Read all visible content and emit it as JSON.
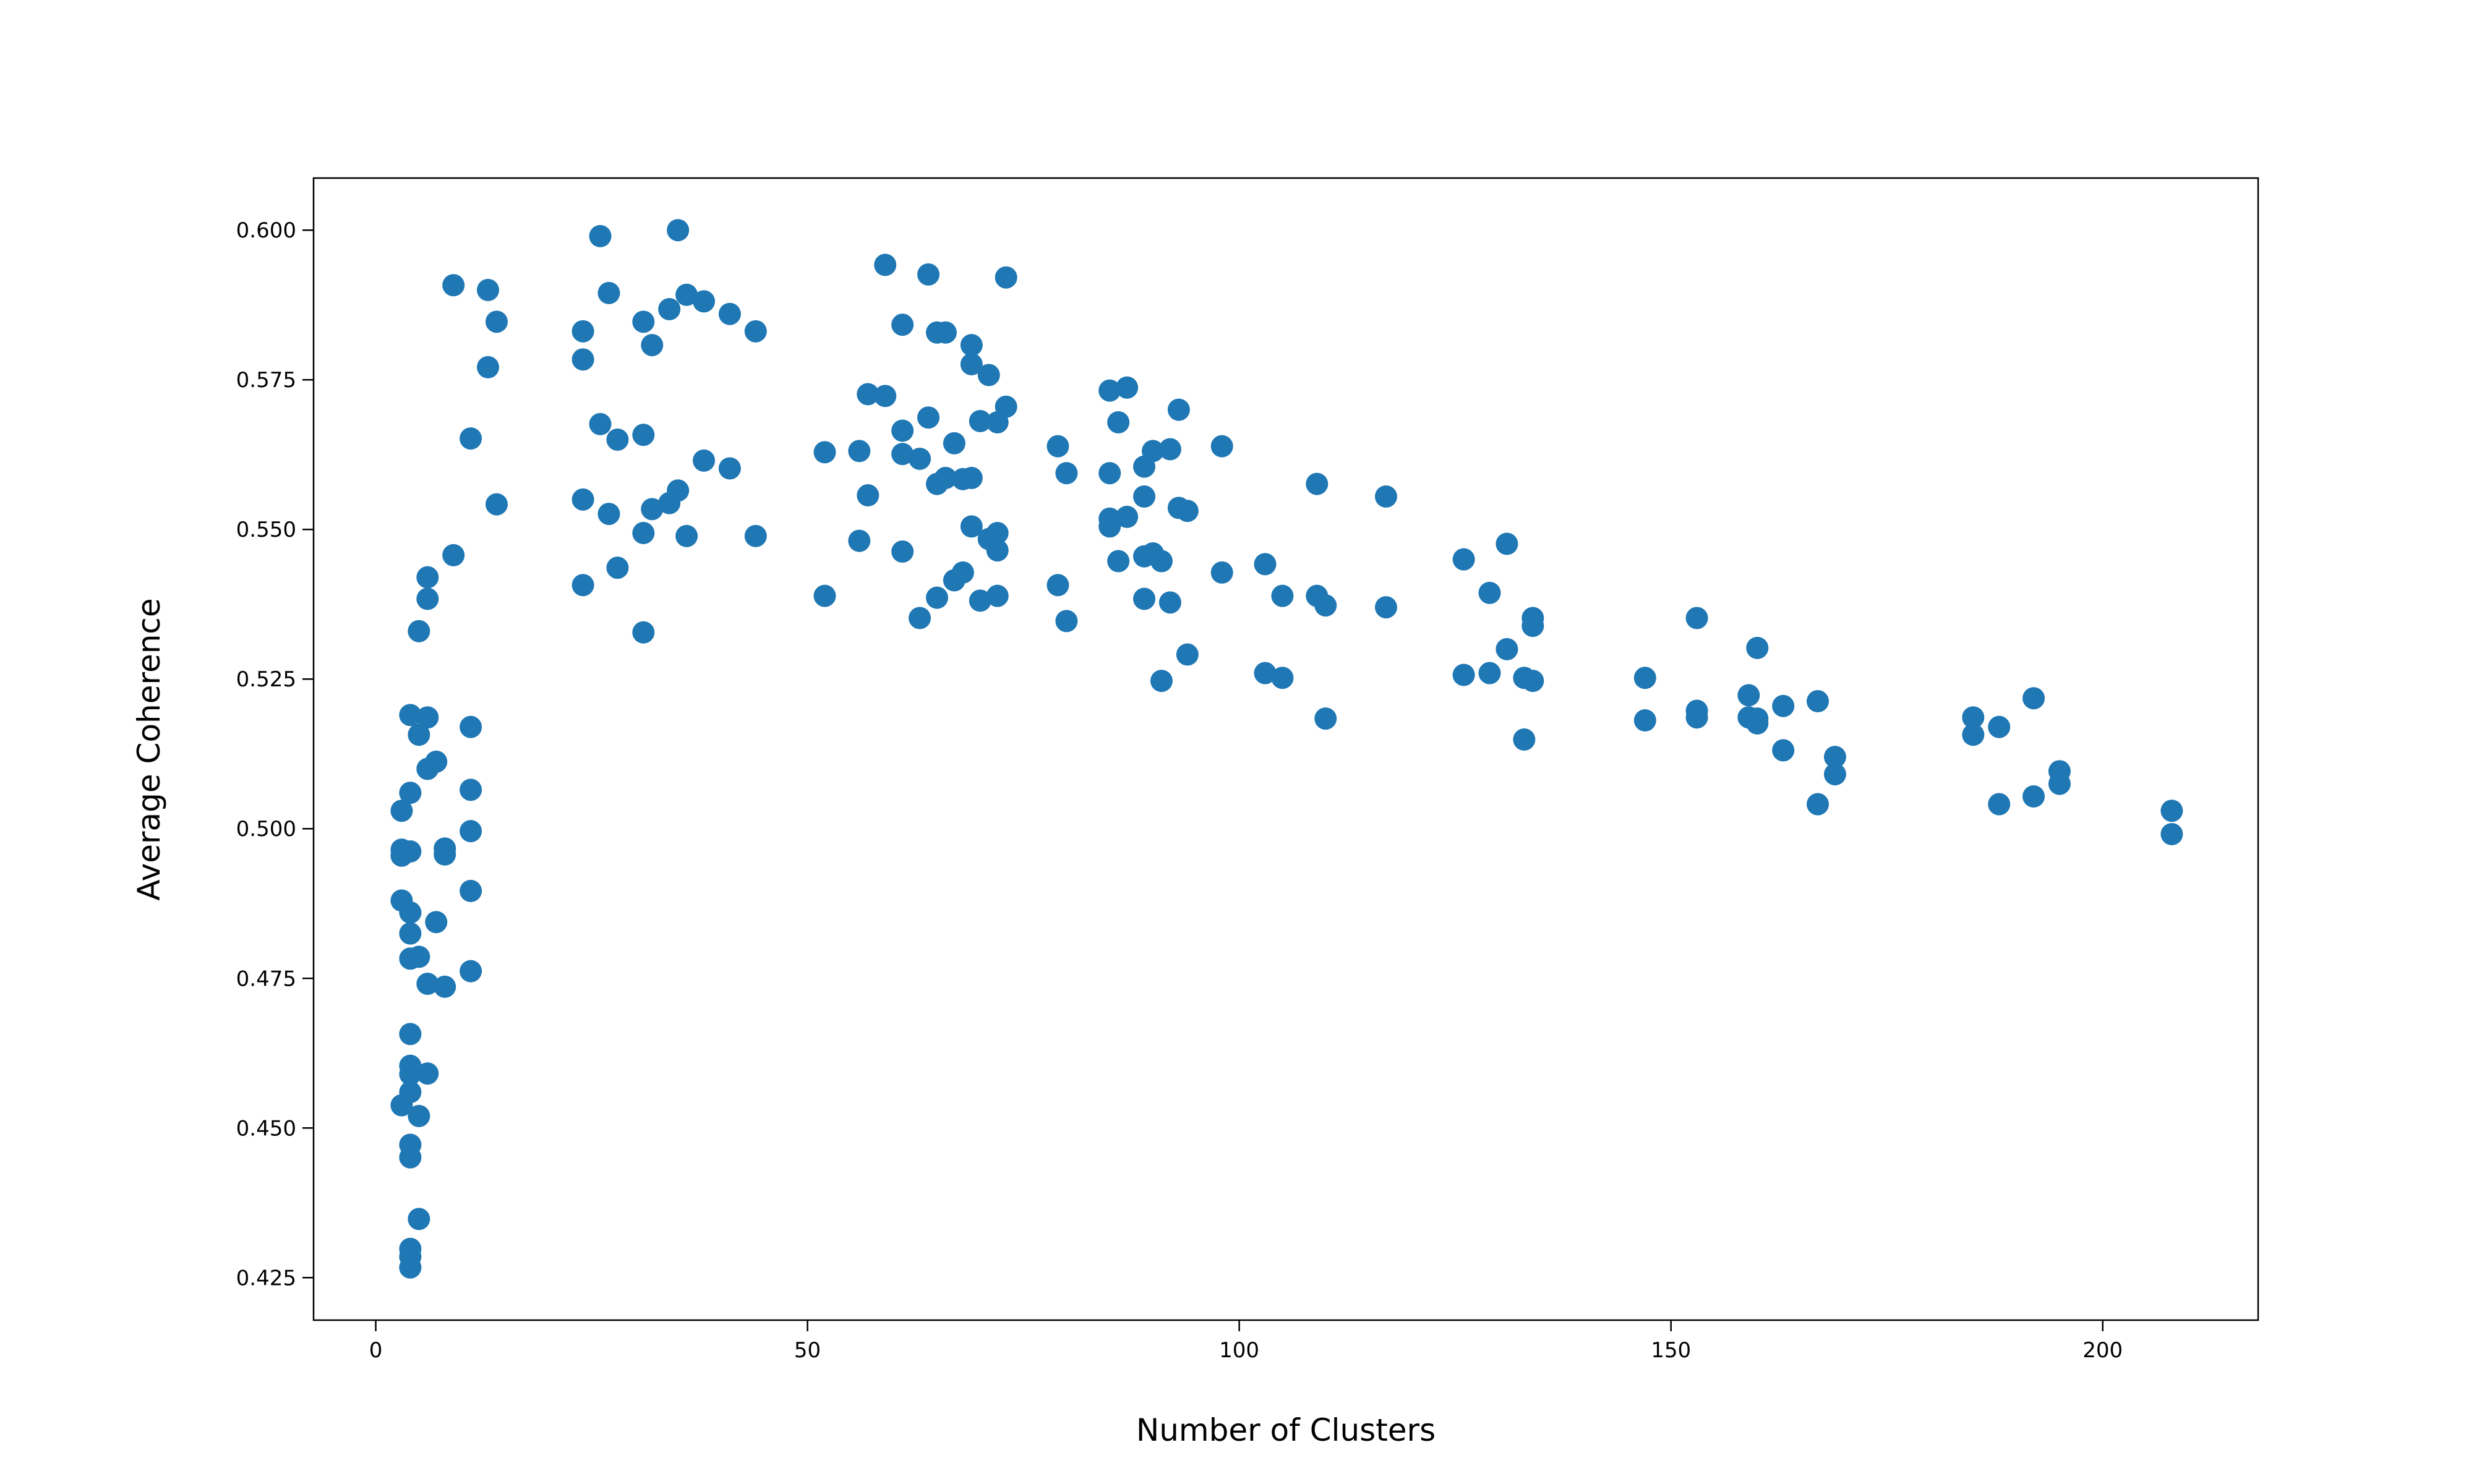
{
  "chart_data": {
    "type": "scatter",
    "xlabel": "Number of Clusters",
    "ylabel": "Average Coherence",
    "color": "#1f77b4",
    "x": [
      3,
      3,
      3,
      3,
      3,
      4,
      4,
      4,
      4,
      4,
      4,
      4,
      4,
      4,
      4,
      4,
      4,
      4,
      4,
      4,
      5,
      5,
      5,
      5,
      5,
      6,
      6,
      6,
      6,
      6,
      6,
      7,
      7,
      8,
      8,
      8,
      9,
      9,
      11,
      11,
      11,
      11,
      11,
      11,
      13,
      13,
      14,
      14,
      24,
      24,
      24,
      24,
      26,
      26,
      27,
      27,
      28,
      28,
      31,
      31,
      31,
      31,
      32,
      32,
      34,
      34,
      35,
      35,
      36,
      36,
      38,
      38,
      41,
      41,
      44,
      44,
      52,
      52,
      56,
      56,
      57,
      57,
      59,
      59,
      61,
      61,
      61,
      61,
      63,
      63,
      64,
      64,
      65,
      65,
      65,
      66,
      66,
      67,
      67,
      68,
      68,
      69,
      69,
      69,
      69,
      70,
      70,
      71,
      71,
      72,
      72,
      72,
      72,
      73,
      73,
      79,
      79,
      80,
      80,
      85,
      85,
      85,
      85,
      86,
      86,
      87,
      87,
      89,
      89,
      89,
      89,
      90,
      90,
      91,
      91,
      92,
      92,
      93,
      93,
      94,
      94,
      98,
      98,
      103,
      103,
      105,
      105,
      109,
      109,
      110,
      110,
      117,
      117,
      126,
      126,
      129,
      129,
      131,
      131,
      133,
      133,
      134,
      134,
      134,
      147,
      147,
      153,
      153,
      153,
      159,
      159,
      160,
      160,
      160,
      163,
      163,
      167,
      167,
      169,
      169,
      185,
      185,
      188,
      188,
      192,
      192,
      195,
      195,
      208,
      208
    ],
    "values": [
      0.503,
      0.4965,
      0.4955,
      0.488,
      0.4538,
      0.519,
      0.506,
      0.4962,
      0.486,
      0.4825,
      0.4783,
      0.4657,
      0.4604,
      0.459,
      0.456,
      0.4472,
      0.4451,
      0.4298,
      0.4285,
      0.4267,
      0.533,
      0.5157,
      0.4786,
      0.452,
      0.4348,
      0.542,
      0.5384,
      0.5186,
      0.51,
      0.4741,
      0.4591,
      0.5112,
      0.4844,
      0.4967,
      0.4957,
      0.4736,
      0.5908,
      0.5457,
      0.5652,
      0.517,
      0.5065,
      0.4996,
      0.4896,
      0.4762,
      0.59,
      0.5771,
      0.5847,
      0.5542,
      0.5831,
      0.5784,
      0.555,
      0.5407,
      0.599,
      0.5676,
      0.5895,
      0.5526,
      0.565,
      0.5436,
      0.5847,
      0.5658,
      0.5494,
      0.5328,
      0.5808,
      0.5534,
      0.5544,
      0.5868,
      0.5565,
      0.6,
      0.5892,
      0.5489,
      0.5881,
      0.5615,
      0.586,
      0.5602,
      0.5831,
      0.5489,
      0.5629,
      0.5389,
      0.5631,
      0.5481,
      0.5726,
      0.5557,
      0.5942,
      0.5723,
      0.5842,
      0.5665,
      0.5626,
      0.5463,
      0.5618,
      0.5352,
      0.5926,
      0.5687,
      0.5829,
      0.5576,
      0.5386,
      0.5829,
      0.5586,
      0.5644,
      0.5415,
      0.5584,
      0.5428,
      0.5808,
      0.5776,
      0.5586,
      0.5505,
      0.5681,
      0.5381,
      0.5758,
      0.5484,
      0.5679,
      0.5494,
      0.5465,
      0.5389,
      0.5921,
      0.5705,
      0.5639,
      0.5407,
      0.5594,
      0.5347,
      0.5732,
      0.5594,
      0.5518,
      0.5505,
      0.5679,
      0.5447,
      0.5737,
      0.5521,
      0.5605,
      0.5555,
      0.5455,
      0.5384,
      0.5631,
      0.546,
      0.5447,
      0.5247,
      0.5634,
      0.5378,
      0.57,
      0.5536,
      0.5531,
      0.5291,
      0.5639,
      0.5428,
      0.5442,
      0.526,
      0.5389,
      0.5252,
      0.5576,
      0.5389,
      0.5373,
      0.5184,
      0.5555,
      0.537,
      0.545,
      0.5257,
      0.5394,
      0.526,
      0.5476,
      0.53,
      0.5252,
      0.5149,
      0.5352,
      0.5339,
      0.5247,
      0.5252,
      0.5181,
      0.5352,
      0.5197,
      0.5186,
      0.5223,
      0.5186,
      0.5302,
      0.5184,
      0.5176,
      0.5205,
      0.5131,
      0.5213,
      0.5041,
      0.512,
      0.5091,
      0.5186,
      0.5157,
      0.517,
      0.5041,
      0.5218,
      0.5054,
      0.5096,
      0.5075,
      0.503,
      0.4991
    ],
    "xlim": [
      -7.2,
      218.0
    ],
    "ylim": [
      0.4179,
      0.6087
    ],
    "xticks": [
      0,
      50,
      100,
      150,
      200
    ],
    "yticks": [
      {
        "value": 0.425,
        "label": "0.425"
      },
      {
        "value": 0.45,
        "label": "0.450"
      },
      {
        "value": 0.475,
        "label": "0.475"
      },
      {
        "value": 0.5,
        "label": "0.500"
      },
      {
        "value": 0.525,
        "label": "0.525"
      },
      {
        "value": 0.55,
        "label": "0.550"
      },
      {
        "value": 0.575,
        "label": "0.575"
      },
      {
        "value": 0.6,
        "label": "0.600"
      }
    ],
    "grid": false
  }
}
